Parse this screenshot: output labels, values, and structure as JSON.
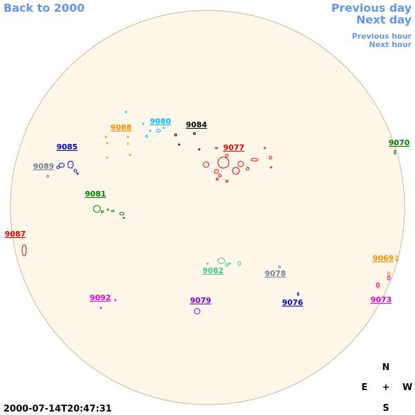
{
  "nav": {
    "back": "Back to 2000",
    "previous_day": "Previous day",
    "next_day": "Next day",
    "previous_hour": "Previous hour",
    "next_hour": "Next hour"
  },
  "timestamp": "2000-07-14T20:47:31",
  "compass": {
    "north": "N",
    "east": "E",
    "center": "+",
    "west": "W",
    "south": "S"
  },
  "regions": [
    {
      "label": "9070",
      "color": "#008000"
    },
    {
      "label": "9088",
      "color": "#ff8c00"
    },
    {
      "label": "9080",
      "color": "#00bfff"
    },
    {
      "label": "9084",
      "color": "#000000"
    },
    {
      "label": "9077",
      "color": "#e00000"
    },
    {
      "label": "9085",
      "color": "#0000c0"
    },
    {
      "label": "9089",
      "color": "#708090"
    },
    {
      "label": "9081",
      "color": "#008000"
    },
    {
      "label": "9087",
      "color": "#e00000"
    },
    {
      "label": "9069",
      "color": "#ff8c00"
    },
    {
      "label": "9082",
      "color": "#33cc88"
    },
    {
      "label": "9078",
      "color": "#708090"
    },
    {
      "label": "9092",
      "color": "#e000e0"
    },
    {
      "label": "9079",
      "color": "#8000c0"
    },
    {
      "label": "9076",
      "color": "#0000c0"
    },
    {
      "label": "9073",
      "color": "#e000e0"
    }
  ]
}
